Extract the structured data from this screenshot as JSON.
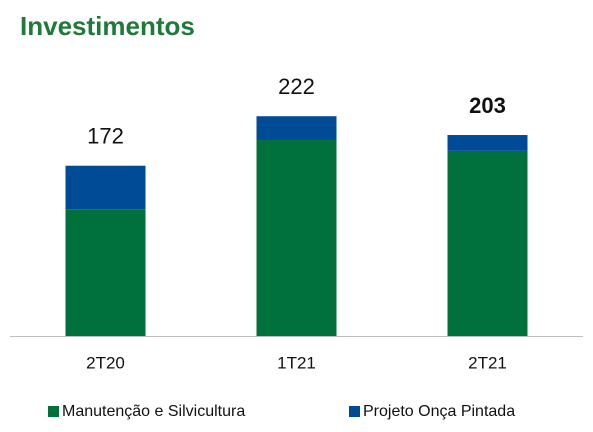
{
  "chart_data": {
    "type": "stacked_bar",
    "title": "Investimentos",
    "categories": [
      "2T20",
      "1T21",
      "2T21"
    ],
    "series": [
      {
        "name": "Manutenção e Silvicultura",
        "color": "#00703c",
        "values": [
          128,
          198,
          187
        ]
      },
      {
        "name": "Projeto Onça Pintada",
        "color": "#004b96",
        "values": [
          44,
          24,
          16
        ]
      }
    ],
    "totals": [
      172,
      222,
      203
    ],
    "legend": "bottom"
  }
}
